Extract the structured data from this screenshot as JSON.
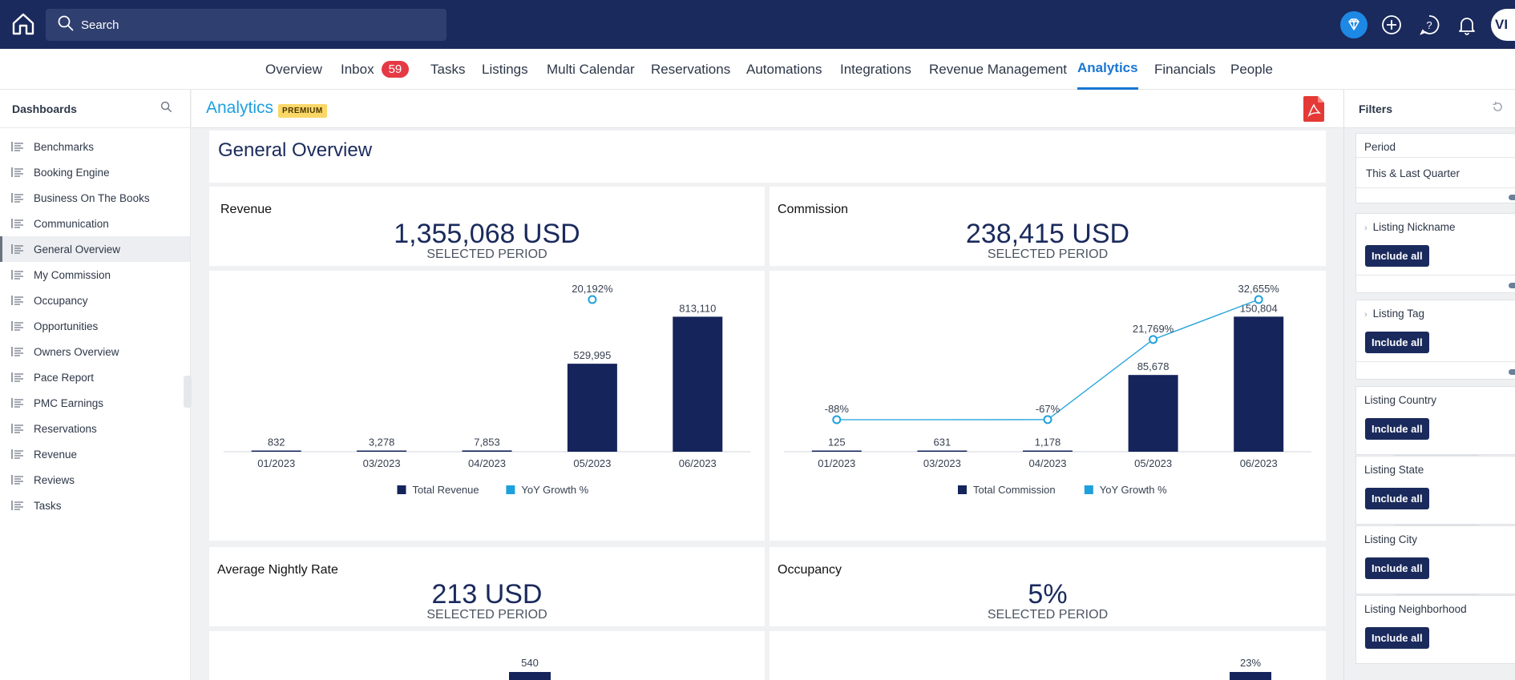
{
  "topbar": {
    "search_placeholder": "Search",
    "avatar_initials": "VI",
    "icons": [
      "home-icon",
      "search-icon",
      "gem-icon",
      "plus-icon",
      "help-icon",
      "bell-icon"
    ]
  },
  "nav": {
    "items": [
      {
        "label": "Overview"
      },
      {
        "label": "Inbox",
        "badge": "59"
      },
      {
        "label": "Tasks"
      },
      {
        "label": "Listings"
      },
      {
        "label": "Multi Calendar"
      },
      {
        "label": "Reservations"
      },
      {
        "label": "Automations"
      },
      {
        "label": "Integrations"
      },
      {
        "label": "Revenue Management"
      },
      {
        "label": "Analytics",
        "active": true
      },
      {
        "label": "Financials"
      },
      {
        "label": "People"
      }
    ]
  },
  "sidebar": {
    "title": "Dashboards",
    "items": [
      {
        "label": "Benchmarks"
      },
      {
        "label": "Booking Engine"
      },
      {
        "label": "Business On The Books"
      },
      {
        "label": "Communication"
      },
      {
        "label": "General Overview",
        "active": true
      },
      {
        "label": "My Commission"
      },
      {
        "label": "Occupancy"
      },
      {
        "label": "Opportunities"
      },
      {
        "label": "Owners Overview"
      },
      {
        "label": "Pace Report"
      },
      {
        "label": "PMC Earnings"
      },
      {
        "label": "Reservations"
      },
      {
        "label": "Revenue"
      },
      {
        "label": "Reviews"
      },
      {
        "label": "Tasks"
      }
    ]
  },
  "header": {
    "title": "Analytics",
    "badge": "PREMIUM"
  },
  "dashboard": {
    "title": "General Overview",
    "kpis": {
      "revenue": {
        "label": "Revenue",
        "value": "1,355,068 USD",
        "sub": "SELECTED PERIOD"
      },
      "commission": {
        "label": "Commission",
        "value": "238,415 USD",
        "sub": "SELECTED PERIOD"
      },
      "adr": {
        "label": "Average Nightly Rate",
        "value": "213 USD",
        "sub": "SELECTED PERIOD"
      },
      "occupancy": {
        "label": "Occupancy",
        "value": "5%",
        "sub": "SELECTED PERIOD"
      }
    }
  },
  "chart_data": [
    {
      "type": "bar",
      "categories": [
        "01/2023",
        "03/2023",
        "04/2023",
        "05/2023",
        "06/2023"
      ],
      "series": [
        {
          "name": "Total Revenue",
          "values": [
            832,
            3278,
            7853,
            529995,
            813110
          ],
          "labels": [
            "832",
            "3,278",
            "7,853",
            "529,995",
            "813,110"
          ]
        },
        {
          "name": "YoY Growth %",
          "type": "line",
          "values": [
            null,
            null,
            null,
            20192,
            null
          ],
          "labels": [
            "",
            "",
            "",
            "20,192%",
            ""
          ]
        }
      ],
      "legend": "bottom",
      "colors": {
        "bar": "#15245a",
        "line": "#1ea0dd"
      }
    },
    {
      "type": "bar",
      "categories": [
        "01/2023",
        "03/2023",
        "04/2023",
        "05/2023",
        "06/2023"
      ],
      "series": [
        {
          "name": "Total Commission",
          "values": [
            125,
            631,
            1178,
            85678,
            150804
          ],
          "labels": [
            "125",
            "631",
            "1,178",
            "85,678",
            "150,804"
          ]
        },
        {
          "name": "YoY Growth %",
          "type": "line",
          "values": [
            -88,
            null,
            -67,
            21769,
            32655
          ],
          "labels": [
            "-88%",
            "",
            "-67%",
            "21,769%",
            "32,655%"
          ]
        }
      ],
      "legend": "bottom",
      "colors": {
        "bar": "#15245a",
        "line": "#1ea0dd"
      }
    },
    {
      "type": "bar",
      "partial": true,
      "series": [
        {
          "name": "",
          "values": [
            540
          ],
          "labels": [
            "540"
          ]
        }
      ]
    },
    {
      "type": "bar",
      "partial": true,
      "series": [
        {
          "name": "",
          "values": [
            23
          ],
          "labels": [
            "23%"
          ]
        }
      ]
    }
  ],
  "filters": {
    "title": "Filters",
    "period_label": "Period",
    "period_value": "This & Last Quarter",
    "include_label": "Include all",
    "groups": [
      {
        "label": "Listing Nickname"
      },
      {
        "label": "Listing Tag"
      },
      {
        "label": "Listing Country"
      },
      {
        "label": "Listing State"
      },
      {
        "label": "Listing City"
      },
      {
        "label": "Listing Neighborhood"
      }
    ]
  }
}
